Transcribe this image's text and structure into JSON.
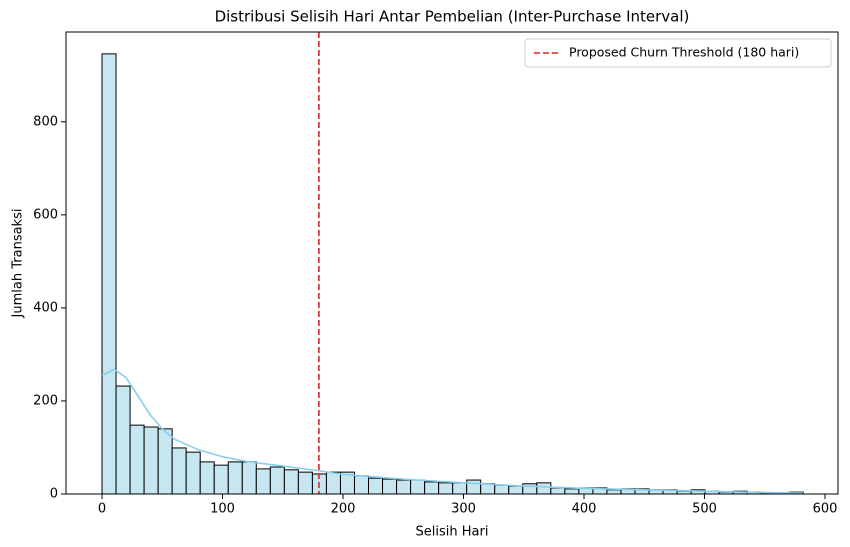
{
  "chart_data": {
    "type": "histogram",
    "title": "Distribusi Selisih Hari Antar Pembelian (Inter-Purchase Interval)",
    "xlabel": "Selisih Hari",
    "ylabel": "Jumlah Transaksi",
    "bins": [
      0,
      11.64,
      23.28,
      34.92,
      46.56,
      58.2,
      69.84,
      81.48,
      93.12,
      104.76,
      116.4,
      128.04,
      139.68,
      151.32,
      162.96,
      174.6,
      186.24,
      197.88,
      209.52,
      221.16,
      232.8,
      244.44,
      256.08,
      267.72,
      279.36,
      291,
      302.64,
      314.28,
      325.92,
      337.56,
      349.2,
      360.84,
      372.48,
      384.12,
      395.76,
      407.4,
      419.04,
      430.68,
      442.32,
      453.96,
      465.6,
      477.24,
      488.88,
      500.52,
      512.16,
      523.8,
      535.44,
      547.08,
      558.72,
      570.36,
      582
    ],
    "counts": [
      946,
      232,
      148,
      144,
      140,
      99,
      90,
      69,
      62,
      69,
      69,
      54,
      58,
      52,
      47,
      43,
      47,
      47,
      39,
      34,
      32,
      30,
      30,
      26,
      24,
      24,
      30,
      22,
      19,
      17,
      22,
      24,
      13,
      11,
      13,
      13,
      9,
      11,
      11,
      9,
      9,
      6,
      9,
      6,
      4,
      6,
      4,
      2,
      2,
      4
    ],
    "color": "#c6e6f1",
    "edgecolor": "#000000",
    "kde": {
      "color": "#87ceeb",
      "x": [
        0,
        10,
        20,
        30,
        40,
        50,
        60,
        80,
        100,
        120,
        150,
        180,
        200,
        250,
        300,
        350,
        400,
        450,
        500,
        550,
        582
      ],
      "values": [
        255,
        268,
        250,
        210,
        170,
        140,
        118,
        95,
        80,
        70,
        60,
        50,
        42,
        32,
        24,
        17,
        12,
        9,
        6,
        3,
        2
      ]
    },
    "threshold": {
      "x": 180,
      "label": "Proposed Churn Threshold (180 hari)",
      "color": "#d62728"
    },
    "legend": "upper right",
    "xlim": [
      -29.9,
      610.8
    ],
    "ylim": [
      0,
      993
    ],
    "xticks": [
      0,
      100,
      200,
      300,
      400,
      500,
      600
    ],
    "yticks": [
      0,
      200,
      400,
      600,
      800
    ]
  }
}
